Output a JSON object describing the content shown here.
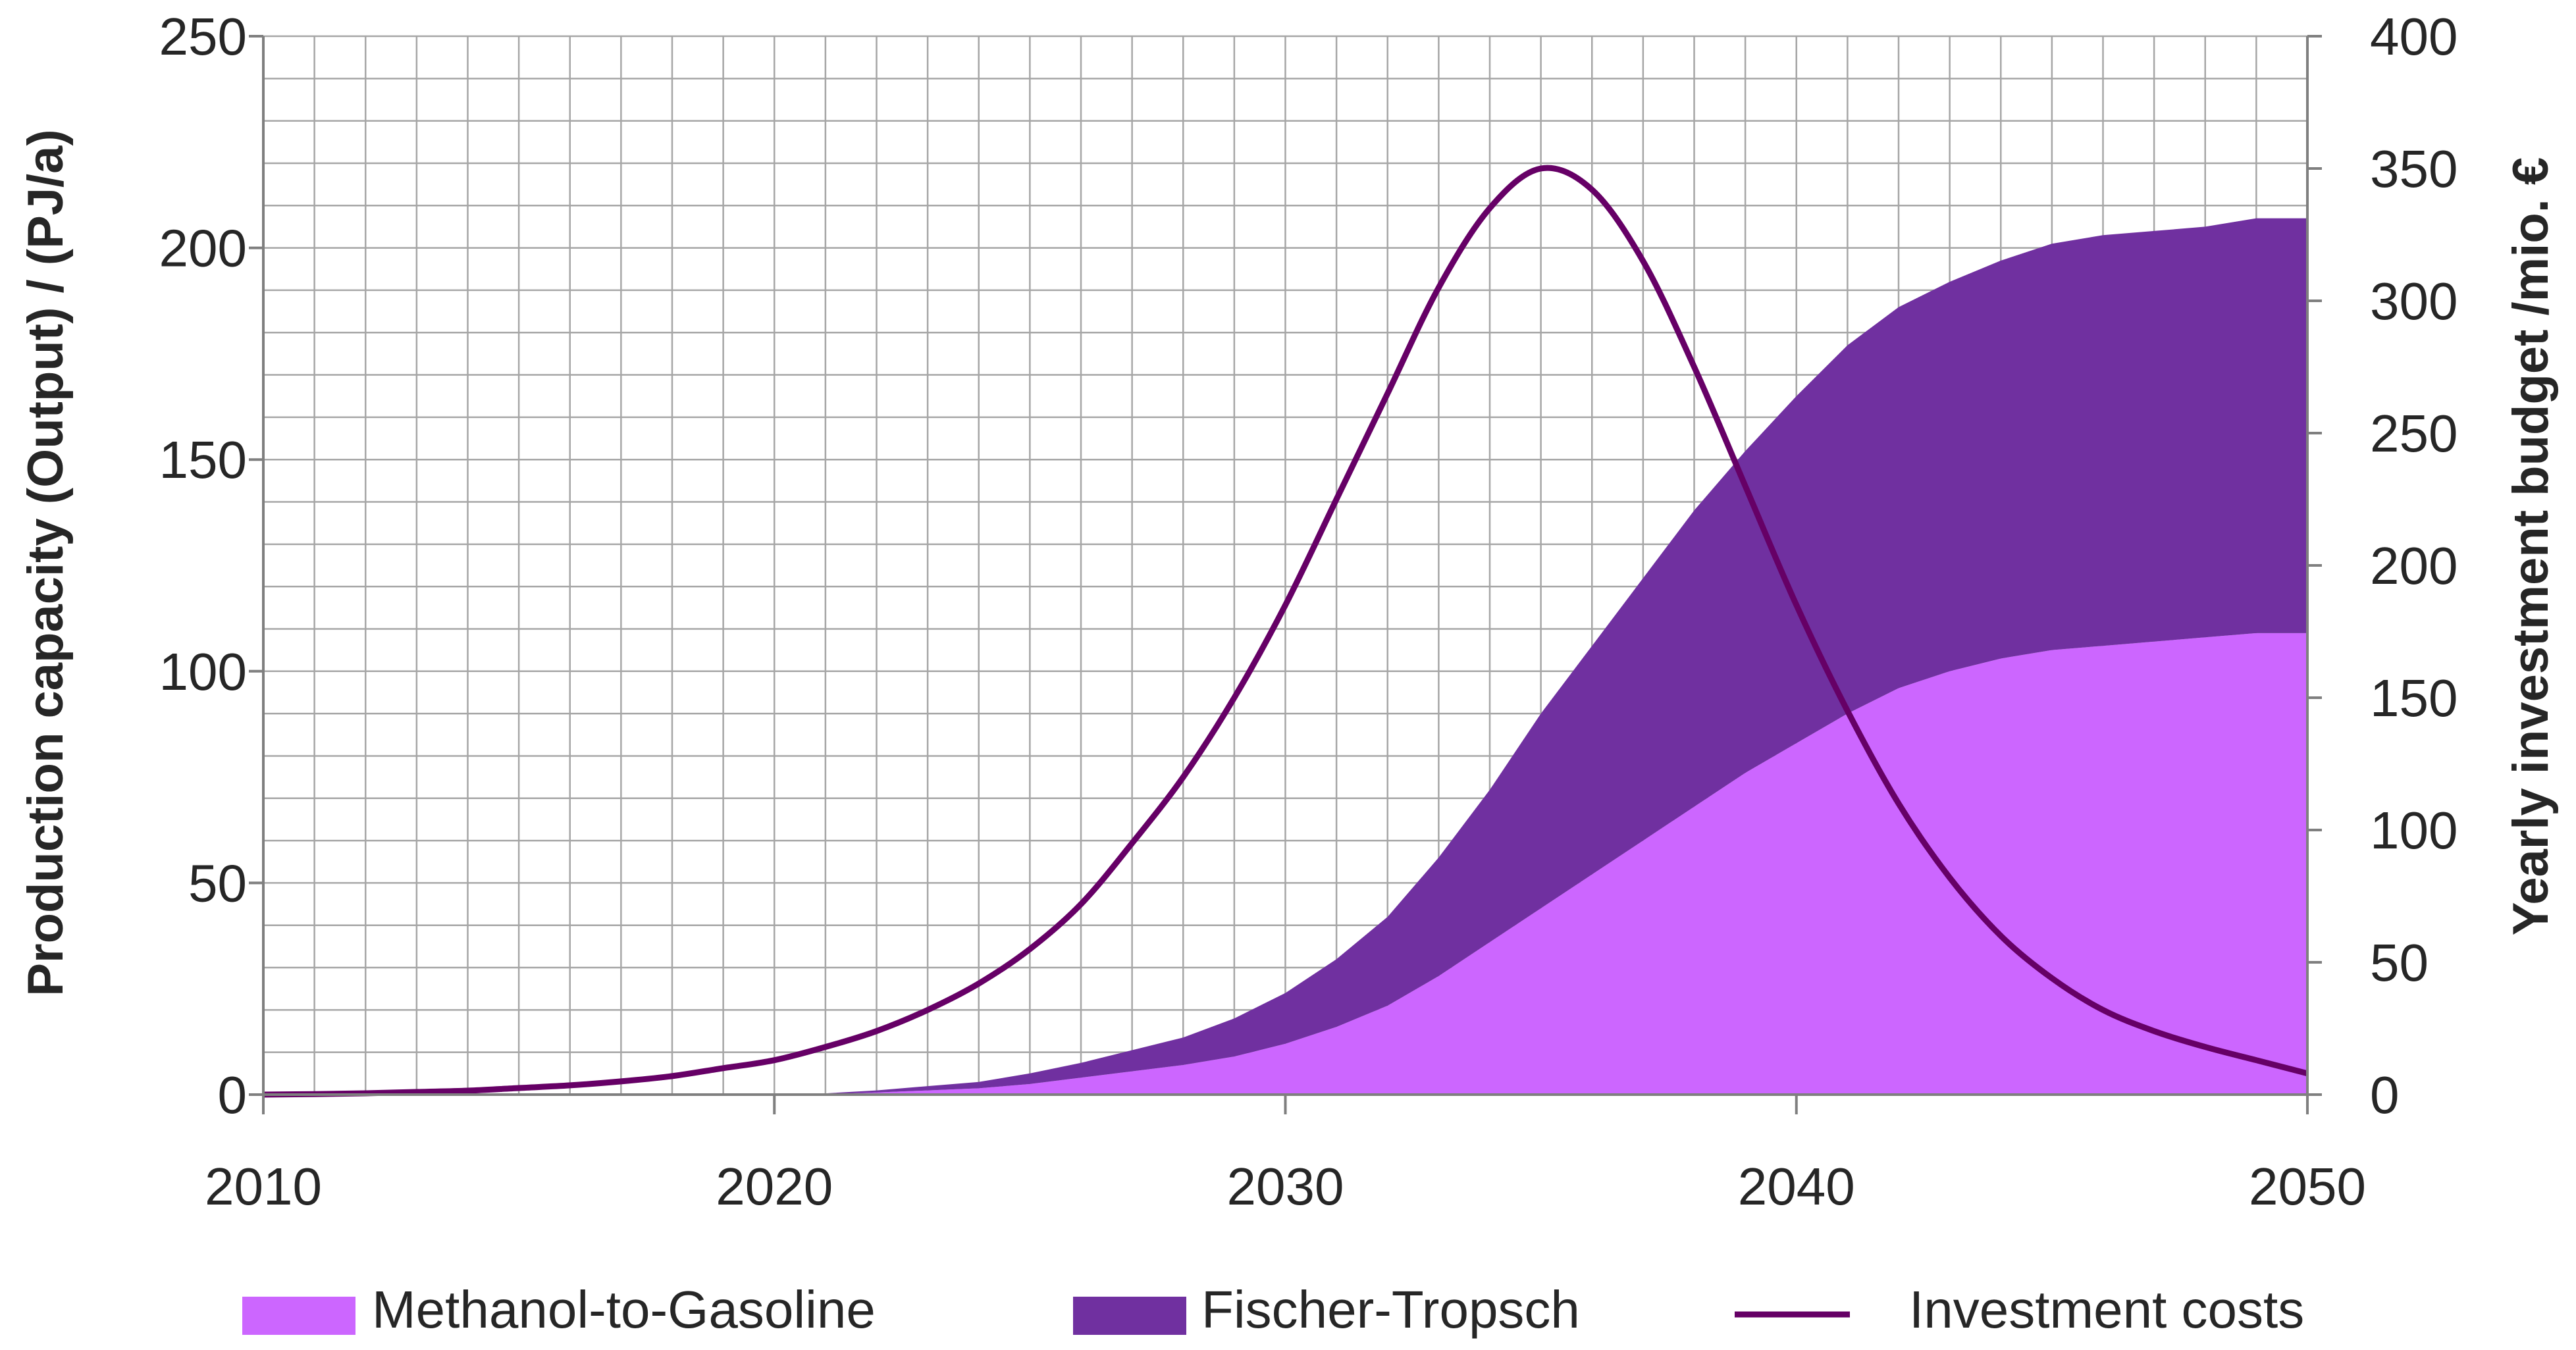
{
  "chart_data": {
    "type": "area",
    "title": "",
    "x": [
      2010,
      2011,
      2012,
      2013,
      2014,
      2015,
      2016,
      2017,
      2018,
      2019,
      2020,
      2021,
      2022,
      2023,
      2024,
      2025,
      2026,
      2027,
      2028,
      2029,
      2030,
      2031,
      2032,
      2033,
      2034,
      2035,
      2036,
      2037,
      2038,
      2039,
      2040,
      2041,
      2042,
      2043,
      2044,
      2045,
      2046,
      2047,
      2048,
      2049,
      2050
    ],
    "xlim": [
      2010,
      2050
    ],
    "x_ticks": [
      "2010",
      "2020",
      "2030",
      "2040",
      "2050"
    ],
    "ylabel_left": "Production capacity (Output) / (PJ/a)",
    "ylim_left": [
      0,
      250
    ],
    "y_ticks_left": [
      "0",
      "50",
      "100",
      "150",
      "200",
      "250"
    ],
    "ylabel_right": "Yearly investment budget /mio. €",
    "ylim_right": [
      0,
      400
    ],
    "y_ticks_right": [
      "0",
      "50",
      "100",
      "150",
      "200",
      "250",
      "300",
      "350",
      "400"
    ],
    "grid": true,
    "legend_position": "bottom",
    "series": [
      {
        "name": "Methanol-to-Gasoline",
        "kind": "stacked-area",
        "axis": "left",
        "color": "#CC66FF",
        "values": [
          0,
          0,
          0,
          0,
          0,
          0,
          0,
          0,
          0,
          0,
          0,
          0.1,
          0.5,
          1,
          1.5,
          2.5,
          4,
          5.5,
          7,
          9,
          12,
          16,
          21,
          28,
          36,
          44,
          52,
          60,
          68,
          76,
          83,
          90,
          96,
          100,
          103,
          105,
          106,
          107,
          108,
          109,
          109
        ]
      },
      {
        "name": "Fischer-Tropsch",
        "kind": "stacked-area",
        "axis": "left",
        "color": "#7030A0",
        "values": [
          0,
          0,
          0,
          0,
          0,
          0,
          0,
          0,
          0,
          0,
          0,
          0.2,
          0.5,
          1,
          1.5,
          2.5,
          3.5,
          5,
          6.5,
          9,
          12,
          16,
          21,
          28,
          36,
          46,
          54,
          62,
          70,
          76,
          82,
          87,
          90,
          92,
          94,
          96,
          97,
          97,
          97,
          98,
          98
        ]
      },
      {
        "name": "Investment costs",
        "kind": "line",
        "axis": "right",
        "color": "#660066",
        "values": [
          0,
          0.2,
          0.5,
          1,
          1.5,
          2.5,
          3.5,
          5,
          7,
          10,
          13,
          18,
          24,
          32,
          42,
          55,
          72,
          95,
          120,
          150,
          185,
          225,
          265,
          305,
          335,
          350,
          342,
          315,
          275,
          230,
          185,
          145,
          110,
          82,
          60,
          44,
          32,
          24,
          18,
          13,
          8
        ]
      }
    ]
  }
}
